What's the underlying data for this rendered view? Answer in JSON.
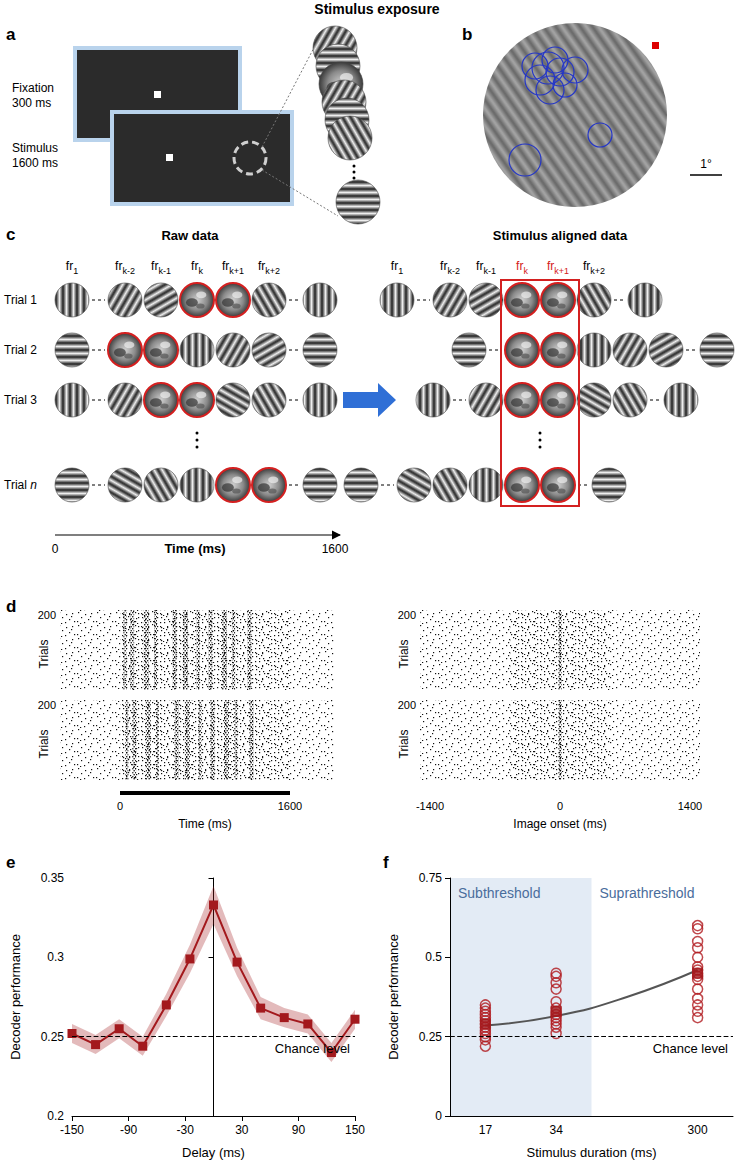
{
  "title": "Stimulus exposure",
  "panel_labels": [
    "a",
    "b",
    "c",
    "d",
    "e",
    "f"
  ],
  "panel_a": {
    "steps": [
      {
        "label": "Fixation",
        "duration": "300 ms"
      },
      {
        "label": "Stimulus",
        "duration": "1600 ms"
      }
    ]
  },
  "panel_b": {
    "scale_bar": "1°"
  },
  "panel_c": {
    "headers": [
      "Raw data",
      "Stimulus aligned data"
    ],
    "frames": [
      {
        "base": "fr",
        "sub": "1"
      },
      {
        "base": "fr",
        "sub": "k-2"
      },
      {
        "base": "fr",
        "sub": "k-1"
      },
      {
        "base": "fr",
        "sub": "k"
      },
      {
        "base": "fr",
        "sub": "k+1"
      },
      {
        "base": "fr",
        "sub": "k+2"
      },
      null
    ],
    "aligned_frames": [
      3,
      4
    ],
    "rows": [
      {
        "label": "Trial 1",
        "images": [
          3,
          4
        ]
      },
      {
        "label": "Trial 2",
        "images": [
          1,
          2
        ]
      },
      {
        "label": "Trial 3",
        "images": [
          2,
          3
        ]
      },
      {
        "label": "Trial",
        "italic": "n",
        "images": [
          4,
          5
        ]
      }
    ],
    "time_axis": {
      "ticks": [
        0,
        1600
      ],
      "title": "Time (ms)"
    }
  },
  "panel_d": {
    "y_label": "Trials",
    "trials": 200,
    "raw_axis": {
      "ticks": [
        0,
        1600
      ],
      "title": "Time (ms)"
    },
    "aligned_axis": {
      "ticks": [
        -1400,
        0,
        1400
      ],
      "title": "Image onset (ms)"
    }
  },
  "chart_data": [
    {
      "type": "line",
      "x_label": "Delay (ms)",
      "y_label": "Decoder performance",
      "x": [
        -150,
        -125,
        -100,
        -75,
        -50,
        -25,
        0,
        25,
        50,
        75,
        100,
        125,
        150
      ],
      "values": [
        0.252,
        0.245,
        0.255,
        0.244,
        0.27,
        0.299,
        0.333,
        0.297,
        0.268,
        0.262,
        0.258,
        0.24,
        0.261
      ],
      "error": [
        0.006,
        0.006,
        0.006,
        0.006,
        0.007,
        0.009,
        0.012,
        0.009,
        0.007,
        0.006,
        0.006,
        0.006,
        0.006
      ],
      "color": "#a3191d",
      "marker": "square",
      "xlim": [
        -150,
        150
      ],
      "xticks": [
        -150,
        -90,
        -30,
        30,
        90,
        150
      ],
      "ylim": [
        0.2,
        0.35
      ],
      "yticks": [
        0.2,
        0.25,
        0.3,
        0.35
      ],
      "grid": false,
      "chance": {
        "value": 0.25,
        "label": "Chance level"
      }
    },
    {
      "type": "scatter",
      "x_label": "Stimulus duration (ms)",
      "y_label": "Decoder performance",
      "categories": [
        "17",
        "34",
        null,
        "300"
      ],
      "series": [
        {
          "type": "scatter",
          "marker": "open_circle",
          "color": "#b0191e",
          "values": [
            [
              0.22,
              0.24,
              0.25,
              0.26,
              0.27,
              0.28,
              0.29,
              0.3,
              0.31,
              0.32,
              0.33,
              0.34,
              0.35
            ],
            [
              0.26,
              0.28,
              0.29,
              0.3,
              0.31,
              0.32,
              0.33,
              0.34,
              0.36,
              0.4,
              0.42,
              0.44,
              0.45
            ],
            [],
            [
              0.31,
              0.33,
              0.35,
              0.37,
              0.4,
              0.43,
              0.44,
              0.45,
              0.46,
              0.47,
              0.5,
              0.53,
              0.55,
              0.59,
              0.6
            ]
          ]
        },
        {
          "type": "scatter",
          "marker": "square",
          "color": "#a3191d",
          "values": [
            0.29,
            0.33,
            null,
            0.45
          ]
        },
        {
          "type": "line",
          "color": "#555555",
          "line_style": "solid",
          "values": [
            0.285,
            0.315,
            0.375,
            0.46
          ]
        }
      ],
      "ylim": [
        0,
        0.75
      ],
      "yticks": [
        0,
        0.25,
        0.5,
        0.75
      ],
      "grid": false,
      "shaded": {
        "categories": [
          "17",
          "34"
        ],
        "label": "Subthreshold",
        "color": "#e3ebf5"
      },
      "other_label": "Suprathreshold",
      "chance": {
        "value": 0.25,
        "label": "Chance level"
      }
    }
  ]
}
